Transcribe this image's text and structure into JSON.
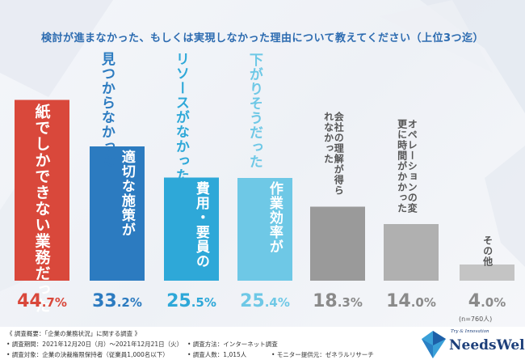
{
  "title": "検討が進まなかった、もしくは実現しなかった理由について教えてください（上位3つ迄）",
  "sample_note": "(n=760人)",
  "colors": {
    "title": "#2c6bb0",
    "bars": [
      "#d9483b",
      "#2c7bc0",
      "#2ea8d8",
      "#6ec8e6",
      "#9a9a9a",
      "#b0b0b0",
      "#c4c4c4"
    ],
    "label_on_bar": [
      "#ffffff",
      "#ffffff",
      "#ffffff",
      "#ffffff",
      "#ffffff",
      "#ffffff",
      "#ffffff"
    ],
    "label_above": [
      "#d9483b",
      "#2c7bc0",
      "#2ea8d8",
      "#6ec8e6",
      "#555555",
      "#555555",
      "#555555"
    ],
    "pct": [
      "#d9483b",
      "#2c7bc0",
      "#2ea8d8",
      "#6ec8e6",
      "#8a8a8a",
      "#8a8a8a",
      "#8a8a8a"
    ]
  },
  "chart_data": {
    "type": "bar",
    "title": "検討が進まなかった、もしくは実現しなかった理由について教えてください（上位3つ迄）",
    "categories": [
      "紙でしかできない業務だった",
      "見つからなかった 適切な施策が",
      "リソースがなかった 費用・要員の",
      "下がりそうだった 作業効率が",
      "会社の理解が得られなかった",
      "オペレーションの変更に時間がかかった",
      "その他"
    ],
    "values": [
      44.7,
      33.2,
      25.5,
      25.4,
      18.3,
      14.0,
      4.0
    ],
    "pct_labels": [
      {
        "int": "44",
        "dec": ".7%"
      },
      {
        "int": "33",
        "dec": ".2%"
      },
      {
        "int": "25",
        "dec": ".5%"
      },
      {
        "int": "25",
        "dec": ".4%"
      },
      {
        "int": "18",
        "dec": ".3%"
      },
      {
        "int": "14",
        "dec": ".0%"
      },
      {
        "int": "4",
        "dec": ".0%"
      }
    ],
    "xlabel": "",
    "ylabel": "",
    "ylim": [
      0,
      50
    ]
  },
  "bar_labels": [
    {
      "on_bar": "紙でしかできない業務だった",
      "above": ""
    },
    {
      "on_bar": "適切な施策が",
      "above": "見つからなかった"
    },
    {
      "on_bar": "費用・要員の",
      "above": "リソースがなかった"
    },
    {
      "on_bar": "作業効率が",
      "above": "下がりそうだった"
    },
    {
      "on_bar": "",
      "above": "会社の理解が得られなかった"
    },
    {
      "on_bar": "",
      "above": "オペレーションの変更に時間がかかった"
    },
    {
      "on_bar": "",
      "above": "その他"
    }
  ],
  "footer": {
    "heading": "《 調査概要：「企業の業務状況」に関する調査 》",
    "period": "• 調査期間：2021年12月20日（月）〜2021年12月21日（火）",
    "method": "• 調査方法：インターネット調査",
    "target": "• 調査対象：企業の決裁権限保持者（従業員1,000名以下）",
    "count": "• 調査人数：1,015人",
    "provider": "• モニター提供元：ゼネラルリサーチ"
  },
  "logo": {
    "tagline": "Try & Innovation",
    "name": "NeedsWell"
  }
}
